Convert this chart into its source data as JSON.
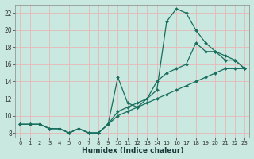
{
  "xlabel": "Humidex (Indice chaleur)",
  "ylabel": "",
  "bg_color": "#c8e8e0",
  "grid_color": "#e8b8b8",
  "line_color": "#1a6e5e",
  "xlim_min": -0.5,
  "xlim_max": 23.5,
  "ylim_min": 7.5,
  "ylim_max": 23.0,
  "xticks": [
    0,
    1,
    2,
    3,
    4,
    5,
    6,
    7,
    8,
    9,
    10,
    11,
    12,
    13,
    14,
    15,
    16,
    17,
    18,
    19,
    20,
    21,
    22,
    23
  ],
  "yticks": [
    8,
    10,
    12,
    14,
    16,
    18,
    20,
    22
  ],
  "series": [
    {
      "x": [
        0,
        1,
        2,
        3,
        4,
        5,
        6,
        7,
        8,
        9,
        10,
        11,
        12,
        13,
        14,
        15,
        16,
        17,
        18,
        19,
        20,
        21,
        22,
        23
      ],
      "y": [
        9.0,
        9.0,
        9.0,
        8.5,
        8.5,
        8.0,
        8.5,
        8.0,
        8.0,
        9.0,
        10.0,
        10.5,
        11.0,
        11.5,
        12.0,
        12.5,
        13.0,
        13.5,
        14.0,
        14.5,
        15.0,
        15.5,
        15.5,
        15.5
      ]
    },
    {
      "x": [
        0,
        1,
        2,
        3,
        4,
        5,
        6,
        7,
        8,
        9,
        10,
        11,
        12,
        13,
        14,
        15,
        16,
        17,
        18,
        19,
        20,
        21,
        22,
        23
      ],
      "y": [
        9.0,
        9.0,
        9.0,
        8.5,
        8.5,
        8.0,
        8.5,
        8.0,
        8.0,
        9.0,
        10.5,
        11.0,
        11.5,
        12.0,
        13.0,
        21.0,
        22.5,
        22.0,
        20.0,
        18.5,
        17.5,
        16.5,
        16.5,
        15.5
      ]
    },
    {
      "x": [
        0,
        1,
        2,
        3,
        4,
        5,
        6,
        7,
        8,
        9,
        10,
        11,
        12,
        13,
        14,
        15,
        16,
        17,
        18,
        19,
        20,
        21,
        22,
        23
      ],
      "y": [
        9.0,
        9.0,
        9.0,
        8.5,
        8.5,
        8.0,
        8.5,
        8.0,
        8.0,
        9.0,
        14.5,
        11.5,
        11.0,
        12.0,
        14.0,
        15.0,
        15.5,
        16.0,
        18.5,
        17.5,
        17.5,
        17.0,
        16.5,
        15.5
      ]
    }
  ]
}
